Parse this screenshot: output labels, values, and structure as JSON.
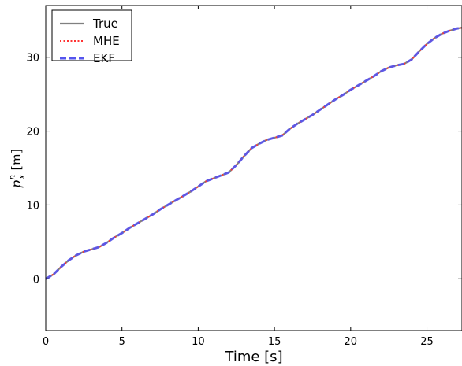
{
  "chart_data": {
    "type": "line",
    "xlabel": "Time [s]",
    "ylabel": {
      "base": "p",
      "sub": "x",
      "sup": "n",
      "unit": "[m]"
    },
    "xlim": [
      0,
      27.3
    ],
    "ylim": [
      -7,
      37
    ],
    "xticks": [
      0,
      5,
      10,
      15,
      20,
      25
    ],
    "yticks": [
      0,
      10,
      20,
      30
    ],
    "grid": false,
    "legend_position": "top-left",
    "x": [
      0,
      0.5,
      1,
      1.5,
      2,
      2.5,
      3,
      3.5,
      4,
      4.5,
      5,
      5.5,
      6,
      6.5,
      7,
      7.5,
      8,
      8.5,
      9,
      9.5,
      10,
      10.5,
      11,
      11.5,
      12,
      12.5,
      13,
      13.5,
      14,
      14.5,
      15,
      15.5,
      16,
      16.5,
      17,
      17.5,
      18,
      18.5,
      19,
      19.5,
      20,
      20.5,
      21,
      21.5,
      22,
      22.5,
      23,
      23.5,
      24,
      24.5,
      25,
      25.5,
      26,
      26.5,
      27,
      27.3
    ],
    "series": [
      {
        "name": "True",
        "color": "#808080",
        "style": "solid",
        "values": [
          0,
          0.6,
          1.6,
          2.5,
          3.2,
          3.7,
          4.0,
          4.3,
          4.9,
          5.6,
          6.2,
          6.9,
          7.5,
          8.1,
          8.7,
          9.4,
          10.0,
          10.6,
          11.2,
          11.8,
          12.5,
          13.2,
          13.6,
          14.0,
          14.4,
          15.4,
          16.6,
          17.7,
          18.3,
          18.8,
          19.1,
          19.4,
          20.3,
          21.0,
          21.6,
          22.2,
          22.9,
          23.6,
          24.3,
          24.9,
          25.6,
          26.2,
          26.8,
          27.4,
          28.1,
          28.6,
          28.9,
          29.1,
          29.7,
          30.8,
          31.8,
          32.6,
          33.2,
          33.6,
          33.9,
          34.0
        ]
      },
      {
        "name": "MHE",
        "color": "#ff3333",
        "style": "dotted",
        "values": [
          0,
          0.6,
          1.6,
          2.5,
          3.2,
          3.7,
          4.0,
          4.3,
          4.9,
          5.6,
          6.2,
          6.9,
          7.5,
          8.1,
          8.7,
          9.4,
          10.0,
          10.6,
          11.2,
          11.8,
          12.5,
          13.2,
          13.6,
          14.0,
          14.4,
          15.4,
          16.6,
          17.7,
          18.3,
          18.8,
          19.1,
          19.4,
          20.3,
          21.0,
          21.6,
          22.2,
          22.9,
          23.6,
          24.3,
          24.9,
          25.6,
          26.2,
          26.8,
          27.4,
          28.1,
          28.6,
          28.9,
          29.1,
          29.7,
          30.8,
          31.8,
          32.6,
          33.2,
          33.6,
          33.9,
          34.0
        ]
      },
      {
        "name": "EKF",
        "color": "#5555ee",
        "style": "dashed",
        "values": [
          0,
          0.6,
          1.6,
          2.5,
          3.2,
          3.7,
          4.0,
          4.3,
          4.9,
          5.6,
          6.2,
          6.9,
          7.5,
          8.1,
          8.7,
          9.4,
          10.0,
          10.6,
          11.2,
          11.8,
          12.5,
          13.2,
          13.6,
          14.0,
          14.4,
          15.4,
          16.6,
          17.7,
          18.3,
          18.8,
          19.1,
          19.4,
          20.3,
          21.0,
          21.6,
          22.2,
          22.9,
          23.6,
          24.3,
          24.9,
          25.6,
          26.2,
          26.8,
          27.4,
          28.1,
          28.6,
          28.9,
          29.1,
          29.7,
          30.8,
          31.8,
          32.6,
          33.2,
          33.6,
          33.9,
          34.0
        ]
      }
    ]
  }
}
